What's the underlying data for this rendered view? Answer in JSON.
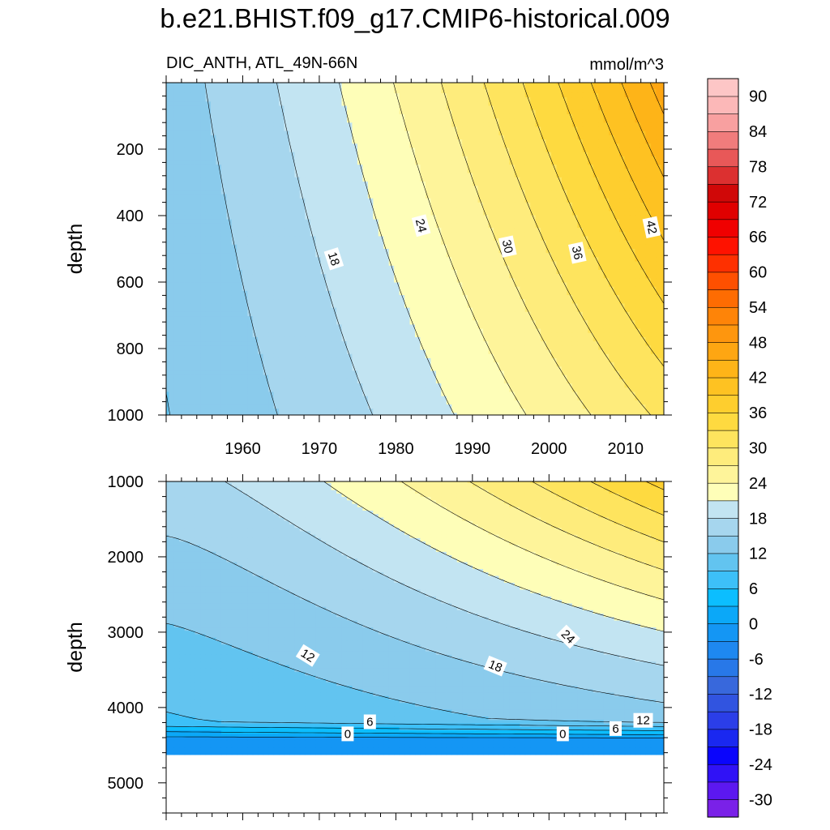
{
  "chart_data": {
    "type": "contour",
    "title": "b.e21.BHIST.f09_g17.CMIP6-historical.009",
    "variable_label": "DIC_ANTH, ATL_49N-66N",
    "units": "mmol/m^3",
    "xlim": [
      1950,
      2015
    ],
    "x_ticks": [
      1960,
      1970,
      1980,
      1990,
      2000,
      2010
    ],
    "colorbar": {
      "levels": [
        -33,
        -30,
        -27,
        -24,
        -21,
        -18,
        -15,
        -12,
        -9,
        -6,
        -3,
        0,
        3,
        6,
        9,
        12,
        15,
        18,
        21,
        24,
        27,
        30,
        33,
        36,
        39,
        42,
        45,
        48,
        51,
        54,
        57,
        60,
        63,
        66,
        69,
        72,
        75,
        78,
        81,
        84,
        87,
        90,
        93
      ],
      "labels": [
        "90",
        "84",
        "78",
        "72",
        "66",
        "60",
        "54",
        "48",
        "42",
        "36",
        "30",
        "24",
        "18",
        "12",
        "6",
        "0",
        "-6",
        "-12",
        "-18",
        "-24",
        "-30"
      ],
      "label_values": [
        90,
        84,
        78,
        72,
        66,
        60,
        54,
        48,
        42,
        36,
        30,
        24,
        18,
        12,
        6,
        0,
        -6,
        -12,
        -18,
        -24,
        -30
      ],
      "colors": [
        "#7A21E8",
        "#5C18F0",
        "#3012F6",
        "#0A05FC",
        "#1A28F0",
        "#2B3EE8",
        "#3154E0",
        "#3868DC",
        "#2878E8",
        "#1E88F0",
        "#1496F4",
        "#0BA8F8",
        "#0CBEFF",
        "#3DC0F8",
        "#62C4F0",
        "#8ACBEC",
        "#A6D6EE",
        "#C2E4F2",
        "#FEFEB8",
        "#FEF49A",
        "#FEEC7C",
        "#FEE45E",
        "#FEDA40",
        "#FECE2E",
        "#FEC222",
        "#FEB418",
        "#FEA612",
        "#FE960E",
        "#FE8408",
        "#FE6C02",
        "#FE5000",
        "#FE3000",
        "#FE1200",
        "#F00000",
        "#E00000",
        "#D00808",
        "#DC3030",
        "#E85858",
        "#F07C7C",
        "#F8A0A0",
        "#FCB8B8",
        "#FDC6C6"
      ]
    },
    "panels": [
      {
        "ylabel": "depth",
        "ylim": [
          0,
          1000
        ],
        "y_ticks": [
          200,
          400,
          600,
          800,
          1000
        ],
        "contour_labels": [
          {
            "text": "18",
            "x": 1971.9,
            "y": 530,
            "angle": 72
          },
          {
            "text": "24",
            "x": 1983.3,
            "y": 430,
            "angle": 75
          },
          {
            "text": "30",
            "x": 1994.6,
            "y": 493,
            "angle": 78
          },
          {
            "text": "36",
            "x": 2003.7,
            "y": 512,
            "angle": 78
          },
          {
            "text": "42",
            "x": 2013.4,
            "y": 435,
            "angle": 78
          }
        ]
      },
      {
        "ylabel": "depth",
        "ylim": [
          1000,
          5400
        ],
        "y_ticks": [
          1000,
          2000,
          3000,
          4000,
          5000
        ],
        "data_bottom": 4600,
        "contour_labels": [
          {
            "text": "12",
            "x": 1968.5,
            "y": 3310,
            "angle": 32
          },
          {
            "text": "18",
            "x": 1993.0,
            "y": 3450,
            "angle": 22
          },
          {
            "text": "24",
            "x": 2002.5,
            "y": 3060,
            "angle": 45
          },
          {
            "text": "6",
            "x": 1976.6,
            "y": 4190,
            "angle": 0
          },
          {
            "text": "0",
            "x": 1973.7,
            "y": 4350,
            "angle": 0
          },
          {
            "text": "0",
            "x": 2001.8,
            "y": 4350,
            "angle": 0
          },
          {
            "text": "6",
            "x": 2008.7,
            "y": 4280,
            "angle": 0
          },
          {
            "text": "12",
            "x": 2012.3,
            "y": 4170,
            "angle": 0
          }
        ]
      }
    ]
  }
}
